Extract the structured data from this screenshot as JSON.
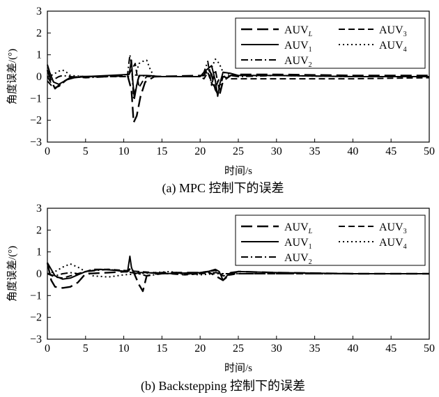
{
  "chart_data": [
    {
      "type": "line",
      "caption": "(a) MPC 控制下的误差",
      "xlabel": "时间/s",
      "ylabel": "角度误差/(°)",
      "xlim": [
        0,
        50
      ],
      "ylim": [
        -3,
        3
      ],
      "xticks": [
        "0",
        "5",
        "10",
        "15",
        "20",
        "25",
        "30",
        "35",
        "40",
        "45",
        "50"
      ],
      "yticks": [
        "3",
        "2",
        "1",
        "0",
        "−1",
        "−2",
        "−3"
      ],
      "legend_position": "top-right",
      "series": [
        {
          "name": "AUV",
          "sub": "L",
          "style": "long-dash",
          "x": [
            0,
            0.5,
            1.0,
            1.5,
            2.0,
            2.5,
            3.0,
            4,
            6,
            8,
            10.5,
            11.0,
            11.3,
            11.7,
            12.2,
            12.8,
            14,
            20.5,
            21.0,
            21.5,
            22.0,
            22.5,
            23.0,
            24,
            25,
            30,
            40,
            50
          ],
          "y": [
            0.3,
            -0.2,
            -0.55,
            -0.4,
            -0.25,
            -0.15,
            -0.05,
            0,
            0,
            0,
            0.05,
            -0.6,
            -2.1,
            -1.8,
            -0.9,
            -0.25,
            0,
            0.05,
            0.4,
            0.1,
            -0.6,
            -0.9,
            -0.2,
            0.05,
            0.1,
            0.1,
            0.05,
            0.05
          ]
        },
        {
          "name": "AUV",
          "sub": "1",
          "style": "solid",
          "x": [
            0,
            0.3,
            0.8,
            1.5,
            2.5,
            3.5,
            5,
            8,
            10.7,
            11.0,
            11.2,
            11.4,
            11.7,
            12.0,
            13,
            15,
            20,
            20.8,
            21.5,
            22.0,
            22.3,
            22.6,
            23.0,
            24,
            25,
            30,
            40,
            50
          ],
          "y": [
            0.55,
            0.2,
            -0.25,
            -0.35,
            -0.15,
            -0.05,
            0,
            0.05,
            0.1,
            0.75,
            -0.3,
            -1.0,
            -0.4,
            0.05,
            0.05,
            0,
            0,
            0.3,
            0.5,
            -0.2,
            -0.9,
            -0.3,
            0.2,
            0.15,
            0.05,
            0.05,
            0,
            0
          ]
        },
        {
          "name": "AUV",
          "sub": "2",
          "style": "dash-dot",
          "x": [
            0,
            0.5,
            1.0,
            1.5,
            2.0,
            3,
            5,
            8,
            10.5,
            10.8,
            11.0,
            11.3,
            11.6,
            12.0,
            13,
            15,
            20,
            20.5,
            21.0,
            21.5,
            22.0,
            22.5,
            23.0,
            24,
            25,
            30,
            40,
            50
          ],
          "y": [
            0,
            -0.3,
            -0.1,
            0,
            0.05,
            0,
            -0.05,
            0,
            0.1,
            1.0,
            0.6,
            -1.0,
            -0.5,
            0,
            0.05,
            0,
            0,
            0.2,
            0.7,
            -0.4,
            0.3,
            -0.6,
            0,
            0.05,
            0,
            0.05,
            0,
            0
          ]
        },
        {
          "name": "AUV",
          "sub": "3",
          "style": "short-dash",
          "x": [
            0,
            0.5,
            1.0,
            1.5,
            2.0,
            2.5,
            3.0,
            4,
            6,
            10.5,
            11.0,
            11.5,
            12.0,
            12.5,
            13,
            15,
            20,
            20.5,
            21.0,
            21.5,
            22.0,
            22.5,
            23.0,
            24,
            25,
            30,
            40,
            50
          ],
          "y": [
            -0.2,
            -0.4,
            -0.5,
            -0.45,
            -0.3,
            -0.15,
            -0.05,
            0,
            0,
            0,
            0.3,
            0.6,
            -0.5,
            -0.2,
            0,
            0,
            0,
            -0.1,
            0.2,
            -0.3,
            -0.5,
            -0.1,
            0,
            -0.1,
            -0.1,
            -0.1,
            -0.1,
            -0.05
          ]
        },
        {
          "name": "AUV",
          "sub": "4",
          "style": "dotted",
          "x": [
            0,
            0.5,
            1.0,
            1.5,
            2.0,
            2.5,
            3,
            5,
            8,
            11.5,
            12.0,
            12.5,
            13.0,
            13.5,
            14,
            15,
            20,
            21.0,
            21.5,
            22.0,
            22.5,
            23.0,
            24,
            25,
            30,
            40,
            50
          ],
          "y": [
            0,
            0.05,
            0.15,
            0.25,
            0.3,
            0.2,
            0.05,
            0,
            0,
            0,
            0.6,
            0.7,
            0.75,
            0.3,
            0,
            0,
            0,
            0.2,
            0.4,
            0.8,
            0.6,
            0.2,
            0.1,
            0.05,
            0.05,
            0,
            0
          ]
        }
      ]
    },
    {
      "type": "line",
      "caption": "(b) Backstepping 控制下的误差",
      "xlabel": "时间/s",
      "ylabel": "角度误差/(°)",
      "xlim": [
        0,
        50
      ],
      "ylim": [
        -3,
        3
      ],
      "xticks": [
        "0",
        "5",
        "10",
        "15",
        "20",
        "25",
        "30",
        "35",
        "40",
        "45",
        "50"
      ],
      "yticks": [
        "3",
        "2",
        "1",
        "0",
        "−1",
        "−2",
        "−3"
      ],
      "legend_position": "top-right",
      "series": [
        {
          "name": "AUV",
          "sub": "L",
          "style": "long-dash",
          "x": [
            0,
            0.5,
            1.0,
            2.0,
            3.0,
            4.0,
            5,
            8,
            10.5,
            11.0,
            12.0,
            12.5,
            13.0,
            15,
            20,
            21,
            22,
            23,
            24,
            25,
            30,
            40,
            50
          ],
          "y": [
            0.5,
            -0.3,
            -0.6,
            -0.65,
            -0.6,
            -0.4,
            0,
            0.05,
            0.1,
            0.3,
            -0.5,
            -0.8,
            -0.1,
            0.05,
            0.05,
            0.1,
            -0.1,
            -0.3,
            0,
            0.1,
            0.05,
            0,
            0
          ]
        },
        {
          "name": "AUV",
          "sub": "1",
          "style": "solid",
          "x": [
            0,
            0.5,
            1.0,
            2.0,
            3.0,
            4.0,
            5,
            7,
            9,
            10.5,
            10.8,
            11.0,
            11.2,
            11.5,
            12,
            13,
            15,
            20,
            21,
            22,
            22.5,
            23,
            23.5,
            24,
            25,
            30,
            40,
            50
          ],
          "y": [
            0.5,
            0.2,
            -0.1,
            -0.25,
            -0.2,
            -0.05,
            0.1,
            0.2,
            0.15,
            0.1,
            0.8,
            0.3,
            0.1,
            0,
            0.05,
            0.05,
            0,
            0.05,
            0.1,
            0.2,
            0.1,
            -0.3,
            -0.1,
            0.05,
            0.1,
            0.05,
            0,
            0
          ]
        },
        {
          "name": "AUV",
          "sub": "2",
          "style": "dash-dot",
          "x": [
            0,
            1,
            2,
            3,
            4,
            5,
            8,
            10,
            11,
            12,
            13,
            15,
            20,
            22,
            23,
            24,
            25,
            30,
            40,
            50
          ],
          "y": [
            0,
            -0.1,
            0,
            0.05,
            0,
            0.1,
            0.2,
            0.1,
            0.05,
            0,
            -0.1,
            0,
            0,
            0.05,
            0,
            0,
            0,
            0,
            0,
            0
          ]
        },
        {
          "name": "AUV",
          "sub": "3",
          "style": "short-dash",
          "x": [
            0,
            1,
            2,
            3,
            4,
            5,
            6,
            8,
            10,
            12,
            14,
            16,
            18,
            20,
            21,
            22,
            23,
            24,
            25,
            30,
            40,
            50
          ],
          "y": [
            0,
            -0.15,
            -0.2,
            -0.1,
            0,
            0.1,
            0.2,
            0.2,
            0.15,
            0.1,
            0.05,
            0,
            -0.05,
            0,
            0.1,
            0.15,
            -0.1,
            -0.05,
            0,
            0,
            0,
            0
          ]
        },
        {
          "name": "AUV",
          "sub": "4",
          "style": "dotted",
          "x": [
            0,
            1,
            2,
            3,
            4,
            5,
            6,
            8,
            10,
            12,
            14,
            16,
            18,
            20,
            22,
            24,
            25,
            30,
            40,
            50
          ],
          "y": [
            0,
            0.1,
            0.3,
            0.45,
            0.3,
            0.1,
            -0.1,
            -0.15,
            -0.05,
            0,
            0.05,
            0.1,
            0,
            -0.05,
            0,
            0,
            0,
            0,
            0,
            0
          ]
        }
      ]
    }
  ]
}
